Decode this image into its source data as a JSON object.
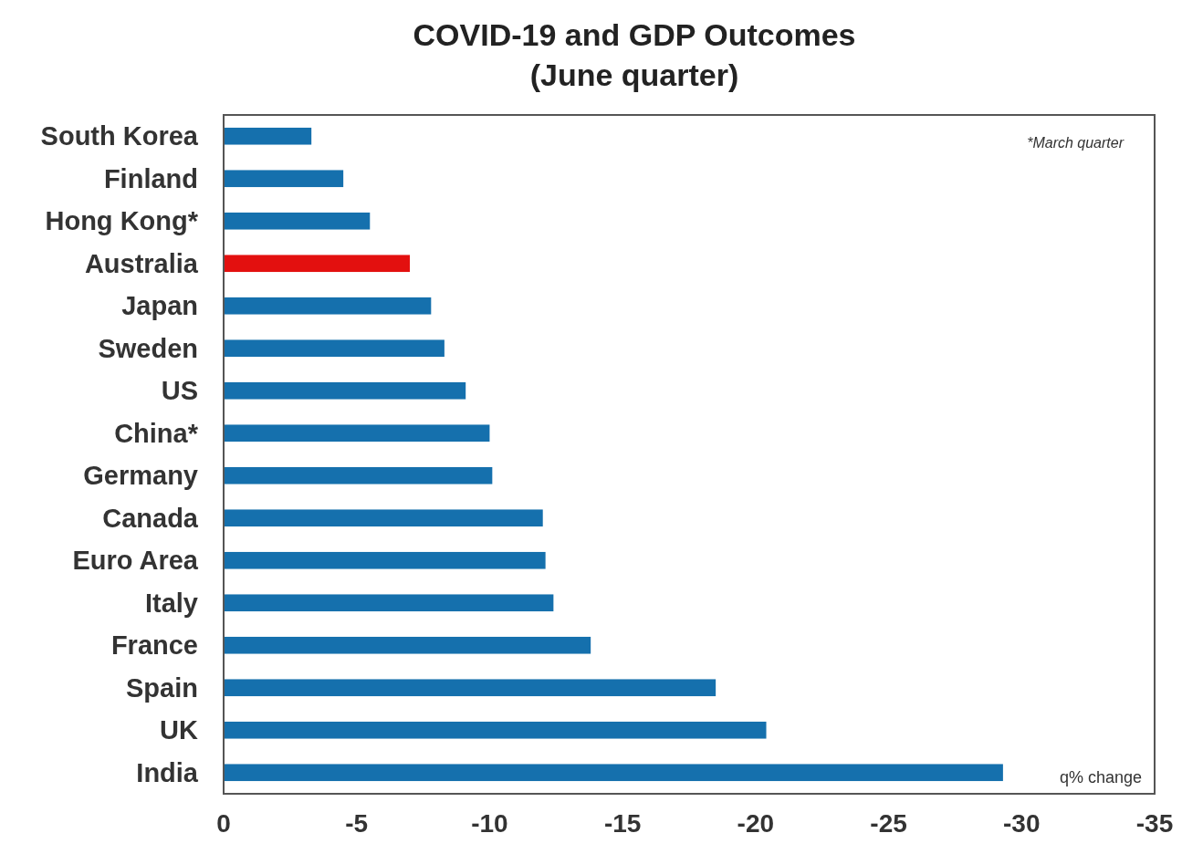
{
  "chart_data": {
    "type": "bar",
    "orientation": "horizontal",
    "title": "COVID-19 and GDP Outcomes\n(June quarter)",
    "categories": [
      "South Korea",
      "Finland",
      "Hong Kong*",
      "Australia",
      "Japan",
      "Sweden",
      "US",
      "China*",
      "Germany",
      "Canada",
      "Euro Area",
      "Italy",
      "France",
      "Spain",
      "UK",
      "India"
    ],
    "values": [
      -3.3,
      -4.5,
      -5.5,
      -7.0,
      -7.8,
      -8.3,
      -9.1,
      -10.0,
      -10.1,
      -12.0,
      -12.1,
      -12.4,
      -13.8,
      -18.5,
      -20.4,
      -29.3
    ],
    "colors": [
      "#1570ad",
      "#1570ad",
      "#1570ad",
      "#e3100f",
      "#1570ad",
      "#1570ad",
      "#1570ad",
      "#1570ad",
      "#1570ad",
      "#1570ad",
      "#1570ad",
      "#1570ad",
      "#1570ad",
      "#1570ad",
      "#1570ad",
      "#1570ad"
    ],
    "xlim": [
      0,
      -35
    ],
    "xticks": [
      0,
      -5,
      -10,
      -15,
      -20,
      -25,
      -30,
      -35
    ],
    "annotations": [
      "*March quarter",
      "q% change"
    ],
    "grid": false
  }
}
